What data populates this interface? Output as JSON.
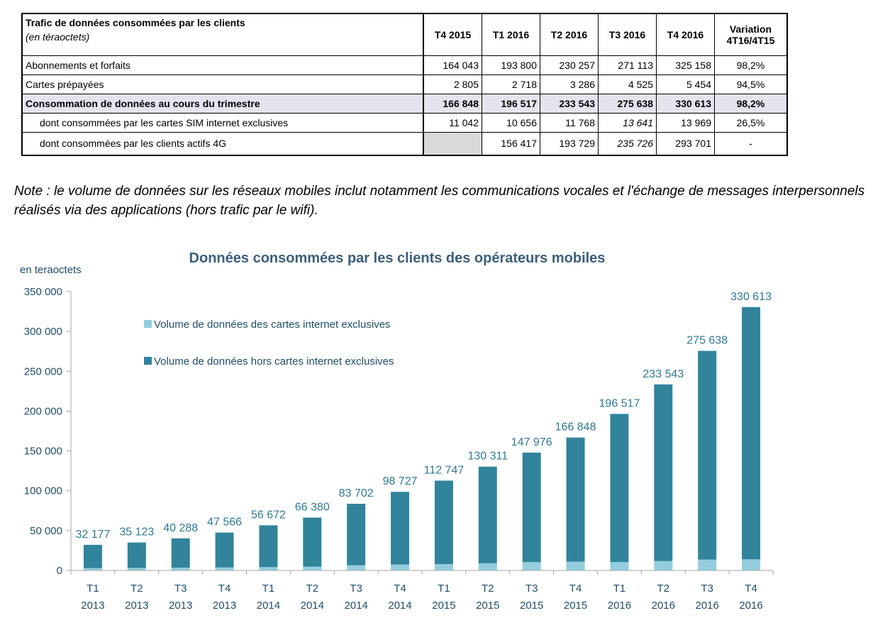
{
  "table": {
    "title": "Trafic de données consommées par les clients",
    "subtitle": "(en téraoctets)",
    "columns": [
      "T4 2015",
      "T1 2016",
      "T2 2016",
      "T3 2016",
      "T4 2016"
    ],
    "variation_header": [
      "Variation",
      "4T16/4T15"
    ],
    "rows": [
      {
        "label": "Abonnements et forfaits",
        "values": [
          "164 043",
          "193 800",
          "230 257",
          "271 113",
          "325 158"
        ],
        "variation": "98,2%"
      },
      {
        "label": "Cartes prépayées",
        "values": [
          "2 805",
          "2 718",
          "3 286",
          "4 525",
          "5 454"
        ],
        "variation": "94,5%"
      },
      {
        "label": "Consommation de données au cours du  trimestre",
        "values": [
          "166 848",
          "196 517",
          "233 543",
          "275 638",
          "330 613"
        ],
        "variation": "98,2%"
      },
      {
        "label": "dont consommées par les cartes SIM internet exclusives",
        "values": [
          "11 042",
          "10 656",
          "11 768",
          "13 641",
          "13 969"
        ],
        "variation": "26,5%"
      },
      {
        "label": "dont consommées par les clients actifs 4G",
        "values": [
          "",
          "156 417",
          "193 729",
          "235 726",
          "293 701"
        ],
        "variation": "-"
      }
    ]
  },
  "note": "Note : le volume de données sur les réseaux mobiles inclut notamment les communications vocales et l'échange de messages interpersonnels réalisés via des applications (hors trafic par le wifi).",
  "chart_data": {
    "type": "bar",
    "stacked": true,
    "title": "Données consommées par les clients des opérateurs mobiles",
    "ylabel": "en teraoctets",
    "ylim": [
      0,
      350000
    ],
    "yticks": [
      "0",
      "50 000",
      "100 000",
      "150 000",
      "200 000",
      "250 000",
      "300 000",
      "350 000"
    ],
    "categories": [
      [
        "T1",
        "2013"
      ],
      [
        "T2",
        "2013"
      ],
      [
        "T3",
        "2013"
      ],
      [
        "T4",
        "2013"
      ],
      [
        "T1",
        "2014"
      ],
      [
        "T2",
        "2014"
      ],
      [
        "T3",
        "2014"
      ],
      [
        "T4",
        "2014"
      ],
      [
        "T1",
        "2015"
      ],
      [
        "T2",
        "2015"
      ],
      [
        "T3",
        "2015"
      ],
      [
        "T4",
        "2015"
      ],
      [
        "T1",
        "2016"
      ],
      [
        "T2",
        "2016"
      ],
      [
        "T3",
        "2016"
      ],
      [
        "T4",
        "2016"
      ]
    ],
    "totals": [
      32177,
      35123,
      40288,
      47566,
      56672,
      66380,
      83702,
      98727,
      112747,
      130311,
      147976,
      166848,
      196517,
      233543,
      275638,
      330613
    ],
    "total_labels": [
      "32 177",
      "35 123",
      "40 288",
      "47 566",
      "56 672",
      "66 380",
      "83 702",
      "98 727",
      "112 747",
      "130 311",
      "147 976",
      "166 848",
      "196 517",
      "233 543",
      "275 638",
      "330 613"
    ],
    "series": [
      {
        "name": "Volume de données des cartes internet exclusives",
        "color": "#93cddd",
        "values": [
          3000,
          3200,
          3500,
          3800,
          4200,
          4800,
          6500,
          7500,
          8000,
          9000,
          10500,
          11042,
          10656,
          11768,
          13641,
          13969
        ]
      },
      {
        "name": "Volume de données hors cartes internet exclusives",
        "color": "#31849b",
        "values": [
          29177,
          31923,
          36788,
          43766,
          52472,
          61580,
          77202,
          91227,
          104747,
          121311,
          137476,
          155806,
          185861,
          221775,
          261997,
          316644
        ]
      }
    ],
    "legend_position": "top-left",
    "grid": false
  }
}
